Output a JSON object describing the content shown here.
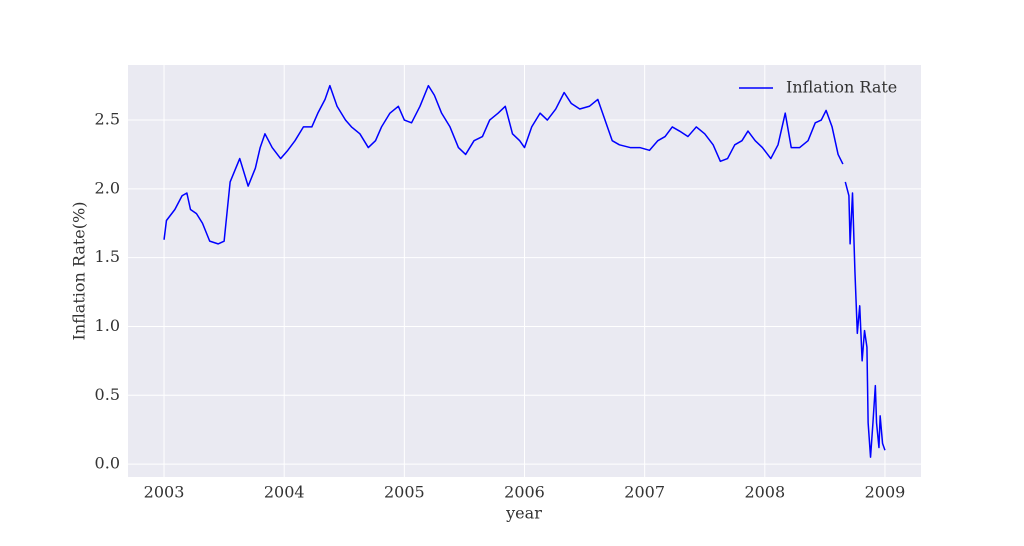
{
  "chart_data": {
    "type": "line",
    "xlabel": "year",
    "ylabel": "Inflation Rate(%)",
    "xlim": [
      2002.7,
      2009.3
    ],
    "xticks": [
      2003,
      2004,
      2005,
      2006,
      2007,
      2008,
      2009
    ],
    "ylim": [
      -0.094,
      2.9
    ],
    "yticks": [
      {
        "value": 0,
        "label": "0.0"
      },
      0.5,
      {
        "value": 1,
        "label": "1.0"
      },
      1.5,
      {
        "value": 2,
        "label": "2.0"
      },
      2.5
    ],
    "grid": true,
    "legend": "upper right",
    "x": [
      2003.0,
      2003.02,
      2003.09,
      2003.15,
      2003.19,
      2003.22,
      2003.27,
      2003.32,
      2003.38,
      2003.45,
      2003.5,
      2003.55,
      2003.63,
      2003.7,
      2003.76,
      2003.8,
      2003.84,
      2003.9,
      2003.97,
      2004.03,
      2004.09,
      2004.16,
      2004.23,
      2004.28,
      2004.34,
      2004.38,
      2004.44,
      2004.51,
      2004.56,
      2004.63,
      2004.7,
      2004.76,
      2004.81,
      2004.88,
      2004.95,
      2005.0,
      2005.06,
      2005.13,
      2005.2,
      2005.25,
      2005.31,
      2005.38,
      2005.45,
      2005.51,
      2005.58,
      2005.65,
      2005.71,
      2005.78,
      2005.84,
      2005.9,
      2005.96,
      2006.0,
      2006.06,
      2006.13,
      2006.19,
      2006.26,
      2006.33,
      2006.39,
      2006.46,
      2006.54,
      2006.61,
      2006.67,
      2006.73,
      2006.79,
      2006.88,
      2006.96,
      2007.04,
      2007.11,
      2007.17,
      2007.23,
      2007.29,
      2007.36,
      2007.43,
      2007.5,
      2007.57,
      2007.63,
      2007.69,
      2007.75,
      2007.81,
      2007.86,
      2007.92,
      2007.98,
      2008.05,
      2008.11,
      2008.17,
      2008.22,
      2008.29,
      2008.36,
      2008.42,
      2008.47,
      2008.51,
      2008.56,
      2008.61,
      2008.65,
      2008.66,
      2008.67,
      2008.7,
      2008.71,
      2008.73,
      2008.75,
      2008.77,
      2008.79,
      2008.81,
      2008.83,
      2008.85,
      2008.86,
      2008.88,
      2008.9,
      2008.92,
      2008.93,
      2008.95,
      2008.96,
      2008.98,
      2009.0
    ],
    "series": [
      {
        "name": "Inflation Rate",
        "color": "#0000ff",
        "values": [
          1.63,
          1.77,
          1.85,
          1.95,
          1.97,
          1.85,
          1.82,
          1.75,
          1.62,
          1.6,
          1.62,
          2.05,
          2.22,
          2.02,
          2.15,
          2.3,
          2.4,
          2.3,
          2.22,
          2.28,
          2.35,
          2.45,
          2.45,
          2.55,
          2.65,
          2.75,
          2.6,
          2.5,
          2.45,
          2.4,
          2.3,
          2.35,
          2.45,
          2.55,
          2.6,
          2.5,
          2.48,
          2.6,
          2.75,
          2.68,
          2.55,
          2.45,
          2.3,
          2.25,
          2.35,
          2.38,
          2.5,
          2.55,
          2.6,
          2.4,
          2.35,
          2.3,
          2.45,
          2.55,
          2.5,
          2.58,
          2.7,
          2.62,
          2.58,
          2.6,
          2.65,
          2.5,
          2.35,
          2.32,
          2.3,
          2.3,
          2.28,
          2.35,
          2.38,
          2.45,
          2.42,
          2.38,
          2.45,
          2.4,
          2.32,
          2.2,
          2.22,
          2.32,
          2.35,
          2.42,
          2.35,
          2.3,
          2.22,
          2.32,
          2.55,
          2.3,
          2.3,
          2.35,
          2.48,
          2.5,
          2.57,
          2.45,
          2.25,
          2.18,
          null,
          2.05,
          1.95,
          1.6,
          1.97,
          1.4,
          0.95,
          1.15,
          0.75,
          0.97,
          0.85,
          0.3,
          0.05,
          0.3,
          0.57,
          0.3,
          0.12,
          0.35,
          0.15,
          0.1
        ]
      }
    ]
  }
}
